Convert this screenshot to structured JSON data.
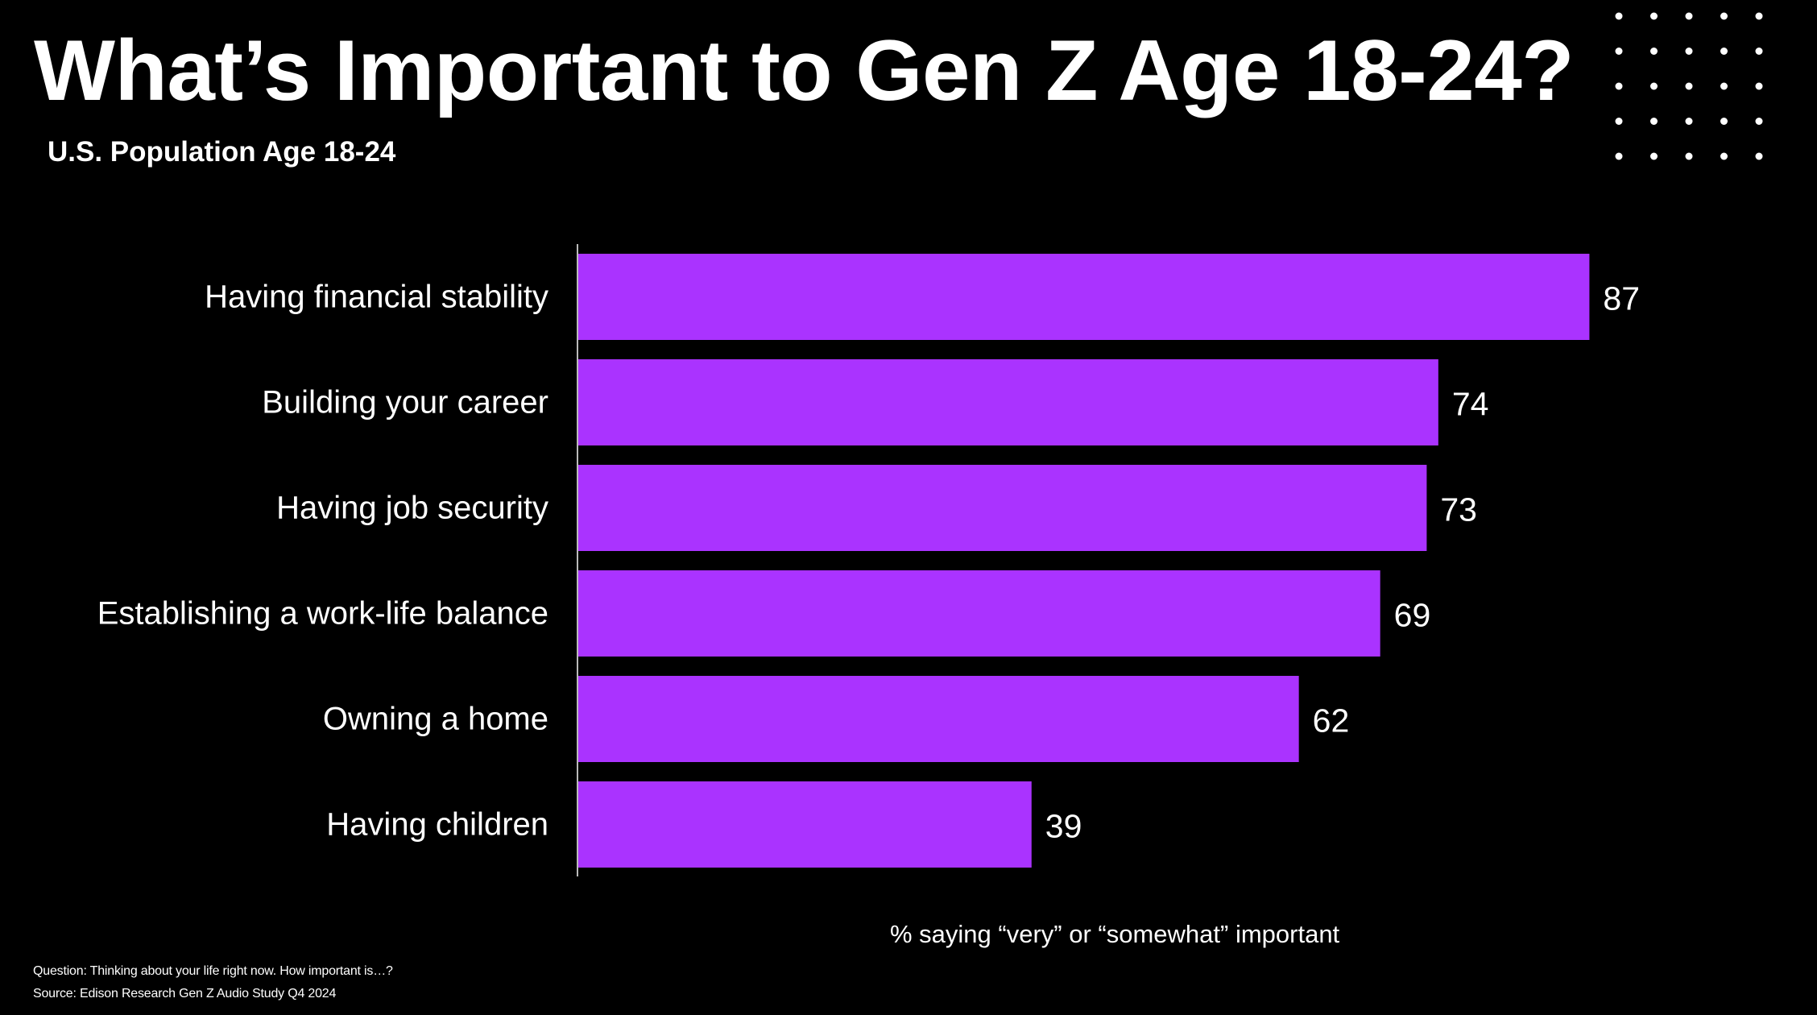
{
  "title": "What’s Important to Gen Z Age 18-24?",
  "subtitle": "U.S. Population Age 18-24",
  "footnotes": {
    "question": "Question: Thinking about your life right now. How important is…?",
    "source": "Source: Edison Research Gen Z Audio Study Q4 2024"
  },
  "decoration": {
    "dot_grid_rows": 5,
    "dot_grid_cols": 5,
    "dot_color": "#ffffff"
  },
  "chart_data": {
    "type": "bar",
    "orientation": "horizontal",
    "categories": [
      "Having financial stability",
      "Building your career",
      "Having job security",
      "Establishing a work-life balance",
      "Owning a home",
      "Having children"
    ],
    "values": [
      87,
      74,
      73,
      69,
      62,
      39
    ],
    "data_labels": [
      "87",
      "74",
      "73",
      "69",
      "62",
      "39"
    ],
    "xlabel": "% saying “very” or “somewhat” important",
    "xlim": [
      0,
      100
    ],
    "grid": false,
    "bar_color": "#aa33ff",
    "axis_color": "#bbbbbb",
    "background": "#000000"
  }
}
